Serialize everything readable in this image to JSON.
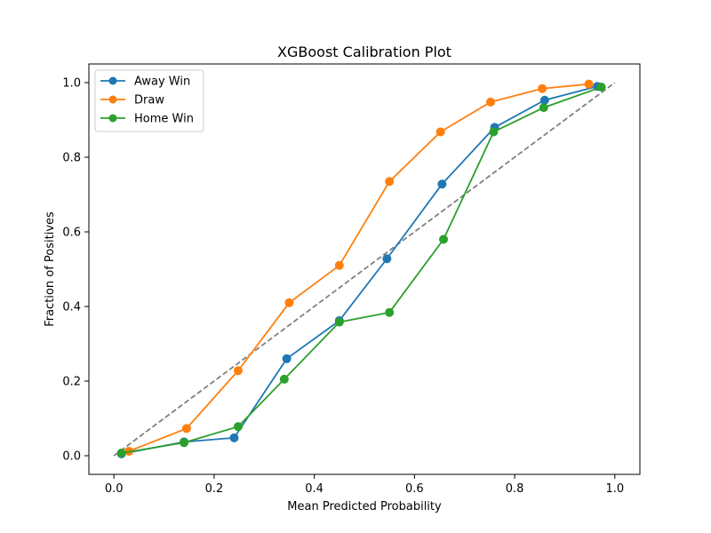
{
  "chart_data": {
    "type": "line",
    "title": "XGBoost Calibration Plot",
    "xlabel": "Mean Predicted Probability",
    "ylabel": "Fraction of Positives",
    "xlim": [
      -0.05,
      1.05
    ],
    "ylim": [
      -0.05,
      1.05
    ],
    "xticks": [
      "0.0",
      "0.2",
      "0.4",
      "0.6",
      "0.8",
      "1.0"
    ],
    "yticks": [
      "0.0",
      "0.2",
      "0.4",
      "0.6",
      "0.8",
      "1.0"
    ],
    "grid": false,
    "legend_position": "top-left",
    "reference_line": {
      "x": [
        0,
        1
      ],
      "y": [
        0,
        1
      ],
      "color": "#808080",
      "style": "dashed"
    },
    "series": [
      {
        "name": "Away Win",
        "color": "#1f77b4",
        "x": [
          0.015,
          0.14,
          0.24,
          0.345,
          0.45,
          0.545,
          0.655,
          0.76,
          0.86,
          0.965
        ],
        "y": [
          0.005,
          0.037,
          0.048,
          0.26,
          0.362,
          0.528,
          0.728,
          0.88,
          0.953,
          0.99
        ]
      },
      {
        "name": "Draw",
        "color": "#ff7f0e",
        "x": [
          0.03,
          0.145,
          0.248,
          0.35,
          0.45,
          0.55,
          0.652,
          0.752,
          0.855,
          0.948
        ],
        "y": [
          0.012,
          0.073,
          0.228,
          0.41,
          0.51,
          0.735,
          0.868,
          0.948,
          0.984,
          0.996
        ]
      },
      {
        "name": "Home Win",
        "color": "#2ca02c",
        "x": [
          0.015,
          0.14,
          0.248,
          0.34,
          0.45,
          0.55,
          0.658,
          0.758,
          0.858,
          0.973
        ],
        "y": [
          0.007,
          0.035,
          0.078,
          0.205,
          0.358,
          0.384,
          0.58,
          0.868,
          0.933,
          0.988
        ]
      }
    ]
  }
}
